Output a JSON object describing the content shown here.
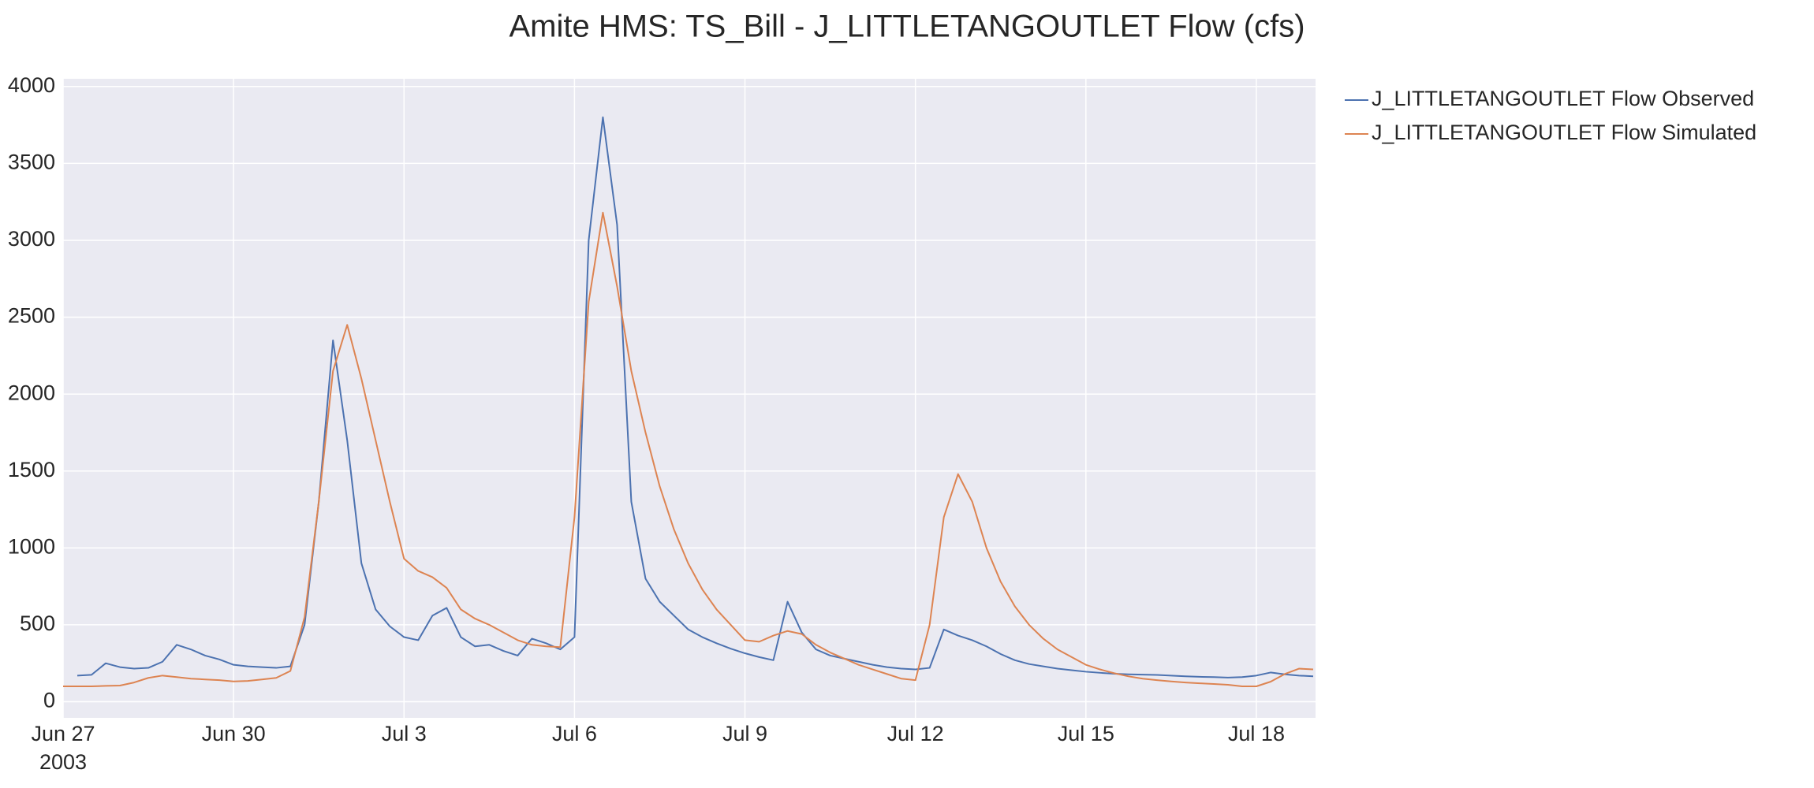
{
  "chart_data": {
    "type": "line",
    "title": "Amite HMS: TS_Bill - J_LITTLETANGOUTLET Flow (cfs)",
    "x": [
      "2003-06-27 00:00",
      "2003-06-27 06:00",
      "2003-06-27 12:00",
      "2003-06-27 18:00",
      "2003-06-28 00:00",
      "2003-06-28 06:00",
      "2003-06-28 12:00",
      "2003-06-28 18:00",
      "2003-06-29 00:00",
      "2003-06-29 06:00",
      "2003-06-29 12:00",
      "2003-06-29 18:00",
      "2003-06-30 00:00",
      "2003-06-30 06:00",
      "2003-06-30 12:00",
      "2003-06-30 18:00",
      "2003-07-01 00:00",
      "2003-07-01 06:00",
      "2003-07-01 12:00",
      "2003-07-01 18:00",
      "2003-07-02 00:00",
      "2003-07-02 06:00",
      "2003-07-02 12:00",
      "2003-07-02 18:00",
      "2003-07-03 00:00",
      "2003-07-03 06:00",
      "2003-07-03 12:00",
      "2003-07-03 18:00",
      "2003-07-04 00:00",
      "2003-07-04 06:00",
      "2003-07-04 12:00",
      "2003-07-04 18:00",
      "2003-07-05 00:00",
      "2003-07-05 06:00",
      "2003-07-05 12:00",
      "2003-07-05 18:00",
      "2003-07-06 00:00",
      "2003-07-06 06:00",
      "2003-07-06 12:00",
      "2003-07-06 18:00",
      "2003-07-07 00:00",
      "2003-07-07 06:00",
      "2003-07-07 12:00",
      "2003-07-07 18:00",
      "2003-07-08 00:00",
      "2003-07-08 06:00",
      "2003-07-08 12:00",
      "2003-07-08 18:00",
      "2003-07-09 00:00",
      "2003-07-09 06:00",
      "2003-07-09 12:00",
      "2003-07-09 18:00",
      "2003-07-10 00:00",
      "2003-07-10 06:00",
      "2003-07-10 12:00",
      "2003-07-10 18:00",
      "2003-07-11 00:00",
      "2003-07-11 06:00",
      "2003-07-11 12:00",
      "2003-07-11 18:00",
      "2003-07-12 00:00",
      "2003-07-12 06:00",
      "2003-07-12 12:00",
      "2003-07-12 18:00",
      "2003-07-13 00:00",
      "2003-07-13 06:00",
      "2003-07-13 12:00",
      "2003-07-13 18:00",
      "2003-07-14 00:00",
      "2003-07-14 06:00",
      "2003-07-14 12:00",
      "2003-07-14 18:00",
      "2003-07-15 00:00",
      "2003-07-15 06:00",
      "2003-07-15 12:00",
      "2003-07-15 18:00",
      "2003-07-16 00:00",
      "2003-07-16 06:00",
      "2003-07-16 12:00",
      "2003-07-16 18:00",
      "2003-07-17 00:00",
      "2003-07-17 06:00",
      "2003-07-17 12:00",
      "2003-07-17 18:00",
      "2003-07-18 00:00",
      "2003-07-18 06:00",
      "2003-07-18 12:00",
      "2003-07-18 18:00",
      "2003-07-19 00:00"
    ],
    "series": [
      {
        "name": "J_LITTLETANGOUTLET Flow Observed",
        "color": "#4c72b0",
        "values": [
          null,
          170,
          175,
          250,
          225,
          215,
          220,
          260,
          370,
          340,
          300,
          275,
          240,
          230,
          225,
          220,
          230,
          500,
          1300,
          2350,
          1700,
          900,
          600,
          490,
          420,
          400,
          560,
          610,
          420,
          360,
          370,
          330,
          300,
          410,
          380,
          340,
          420,
          3000,
          3800,
          3100,
          1300,
          800,
          650,
          560,
          470,
          420,
          380,
          345,
          315,
          290,
          270,
          650,
          450,
          340,
          300,
          280,
          260,
          240,
          225,
          215,
          210,
          220,
          470,
          430,
          400,
          360,
          310,
          270,
          245,
          230,
          215,
          205,
          195,
          188,
          182,
          178,
          176,
          174,
          170,
          165,
          162,
          160,
          157,
          160,
          170,
          190,
          178,
          170,
          165
        ]
      },
      {
        "name": "J_LITTLETANGOUTLET Flow Simulated",
        "color": "#dd8452",
        "values": [
          100,
          100,
          100,
          103,
          105,
          125,
          155,
          170,
          160,
          150,
          145,
          140,
          132,
          135,
          145,
          155,
          200,
          550,
          1300,
          2150,
          2450,
          2100,
          1700,
          1300,
          930,
          850,
          810,
          740,
          600,
          540,
          500,
          450,
          400,
          370,
          360,
          355,
          1200,
          2600,
          3180,
          2700,
          2150,
          1750,
          1400,
          1120,
          900,
          730,
          600,
          500,
          400,
          390,
          430,
          460,
          440,
          370,
          320,
          280,
          240,
          210,
          180,
          150,
          140,
          500,
          1200,
          1480,
          1300,
          1000,
          780,
          620,
          500,
          410,
          340,
          290,
          240,
          210,
          185,
          165,
          150,
          140,
          132,
          125,
          120,
          115,
          110,
          100,
          100,
          130,
          180,
          215,
          210
        ]
      }
    ],
    "xlim": [
      "2003-06-27 00:00",
      "2003-07-19 01:00"
    ],
    "xticks": [
      {
        "value": "2003-06-27",
        "label": "Jun 27\n2003"
      },
      {
        "value": "2003-06-30",
        "label": "Jun 30"
      },
      {
        "value": "2003-07-03",
        "label": "Jul 3"
      },
      {
        "value": "2003-07-06",
        "label": "Jul 6"
      },
      {
        "value": "2003-07-09",
        "label": "Jul 9"
      },
      {
        "value": "2003-07-12",
        "label": "Jul 12"
      },
      {
        "value": "2003-07-15",
        "label": "Jul 15"
      },
      {
        "value": "2003-07-18",
        "label": "Jul 18"
      }
    ],
    "ylim": [
      -105,
      4050
    ],
    "yticks": [
      0,
      500,
      1000,
      1500,
      2000,
      2500,
      3000,
      3500,
      4000
    ],
    "grid": true
  }
}
